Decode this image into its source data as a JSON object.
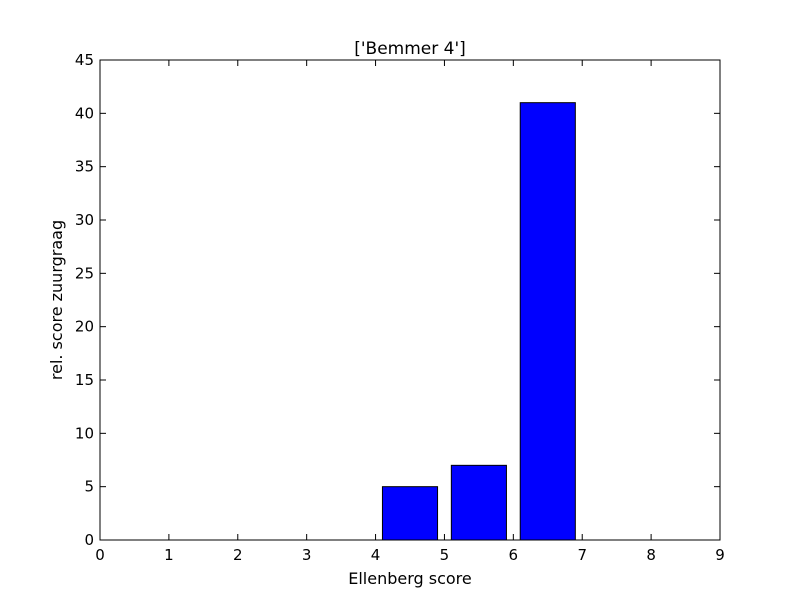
{
  "chart_data": {
    "type": "bar",
    "title": "['Bemmer 4']",
    "xlabel": "Ellenberg score",
    "ylabel": "rel. score zuurgraag",
    "xlim": [
      0,
      9
    ],
    "ylim": [
      0,
      45
    ],
    "xticks": [
      0,
      1,
      2,
      3,
      4,
      5,
      6,
      7,
      8,
      9
    ],
    "yticks": [
      0,
      5,
      10,
      15,
      20,
      25,
      30,
      35,
      40,
      45
    ],
    "bar_width": 0.8,
    "x": [
      0,
      1,
      2,
      3,
      4,
      5,
      6,
      7,
      8
    ],
    "values": [
      0,
      0,
      0,
      0,
      5,
      7,
      41,
      0,
      0
    ],
    "bar_color": "#0000ff",
    "grid": false
  }
}
